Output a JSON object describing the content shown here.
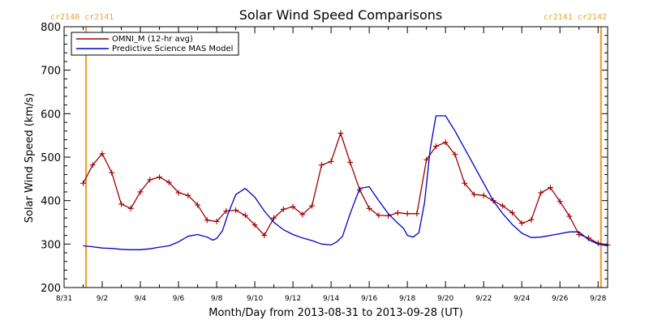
{
  "colors": {
    "background": "#ffffff",
    "axis": "#000000",
    "omni": "#a00000",
    "model": "#0000cc",
    "carrington": "#f0a030"
  },
  "chart_data": {
    "type": "line",
    "title": "Solar Wind Speed Comparisons",
    "xlabel": "Month/Day from 2013-08-31 to 2013-09-28 (UT)",
    "ylabel": "Solar Wind Speed (km/s)",
    "ylim": [
      200,
      800
    ],
    "xlim_days": [
      0,
      28.5
    ],
    "yticks": [
      200,
      300,
      400,
      500,
      600,
      700,
      800
    ],
    "xticks": [
      {
        "day": 0,
        "label": "8/31"
      },
      {
        "day": 2,
        "label": "9/2"
      },
      {
        "day": 4,
        "label": "9/4"
      },
      {
        "day": 6,
        "label": "9/6"
      },
      {
        "day": 8,
        "label": "9/8"
      },
      {
        "day": 10,
        "label": "9/10"
      },
      {
        "day": 12,
        "label": "9/12"
      },
      {
        "day": 14,
        "label": "9/14"
      },
      {
        "day": 16,
        "label": "9/16"
      },
      {
        "day": 18,
        "label": "9/18"
      },
      {
        "day": 20,
        "label": "9/20"
      },
      {
        "day": 22,
        "label": "9/22"
      },
      {
        "day": 24,
        "label": "9/24"
      },
      {
        "day": 26,
        "label": "9/26"
      },
      {
        "day": 28,
        "label": "9/28"
      }
    ],
    "legend": {
      "placement": "top-left",
      "entries": [
        {
          "name": "OMNI_M (12-hr avg)",
          "color": "#a00000"
        },
        {
          "name": "Predictive Science MAS Model",
          "color": "#0000cc"
        }
      ]
    },
    "carrington_markers": [
      {
        "day": 1.15,
        "labels": [
          "cr2140",
          "cr2141"
        ],
        "label_side": "left"
      },
      {
        "day": 28.15,
        "labels": [
          "cr2141",
          "cr2142"
        ],
        "label_side": "right"
      }
    ],
    "series": [
      {
        "name": "OMNI_M (12-hr avg)",
        "color": "#a00000",
        "markers": true,
        "x": [
          1.0,
          1.5,
          2.0,
          2.5,
          3.0,
          3.5,
          4.0,
          4.5,
          5.0,
          5.5,
          6.0,
          6.5,
          7.0,
          7.5,
          8.0,
          8.5,
          9.0,
          9.5,
          10.0,
          10.5,
          11.0,
          11.5,
          12.0,
          12.5,
          13.0,
          13.5,
          14.0,
          14.5,
          15.0,
          15.5,
          16.0,
          16.5,
          17.0,
          17.5,
          18.0,
          18.5,
          19.0,
          19.5,
          20.0,
          20.5,
          21.0,
          21.5,
          22.0,
          22.5,
          23.0,
          23.5,
          24.0,
          24.5,
          25.0,
          25.5,
          26.0,
          26.5,
          27.0,
          27.5,
          28.0,
          28.5
        ],
        "values": [
          440,
          482,
          508,
          464,
          392,
          382,
          420,
          448,
          454,
          442,
          418,
          412,
          390,
          355,
          352,
          376,
          378,
          366,
          344,
          320,
          360,
          380,
          386,
          368,
          388,
          482,
          490,
          555,
          488,
          425,
          382,
          366,
          365,
          372,
          370,
          370,
          494,
          525,
          534,
          506,
          440,
          414,
          412,
          400,
          388,
          372,
          348,
          356,
          418,
          430,
          398,
          364,
          322,
          314,
          302,
          298
        ]
      },
      {
        "name": "Predictive Science MAS Model",
        "color": "#0000cc",
        "markers": false,
        "x": [
          1.0,
          1.5,
          2.0,
          2.5,
          3.0,
          3.5,
          4.0,
          4.5,
          5.0,
          5.5,
          6.0,
          6.5,
          7.0,
          7.5,
          7.8,
          8.0,
          8.3,
          8.6,
          9.0,
          9.5,
          10.0,
          10.5,
          11.0,
          11.5,
          12.0,
          12.5,
          13.0,
          13.5,
          14.0,
          14.3,
          14.6,
          15.0,
          15.5,
          16.0,
          16.5,
          17.0,
          17.5,
          17.8,
          18.0,
          18.3,
          18.6,
          18.9,
          19.2,
          19.5,
          20.0,
          20.5,
          21.0,
          21.5,
          22.0,
          22.5,
          23.0,
          23.5,
          24.0,
          24.5,
          25.0,
          25.5,
          26.0,
          26.5,
          27.0,
          27.5,
          28.0,
          28.5
        ],
        "values": [
          296,
          294,
          291,
          290,
          288,
          287,
          287,
          289,
          293,
          296,
          305,
          318,
          322,
          316,
          309,
          313,
          330,
          370,
          414,
          428,
          408,
          376,
          350,
          333,
          322,
          314,
          308,
          300,
          298,
          305,
          318,
          370,
          428,
          432,
          400,
          370,
          348,
          336,
          320,
          316,
          326,
          395,
          520,
          595,
          595,
          560,
          520,
          480,
          440,
          400,
          370,
          345,
          325,
          315,
          316,
          320,
          324,
          328,
          328,
          310,
          300,
          296
        ]
      }
    ]
  }
}
